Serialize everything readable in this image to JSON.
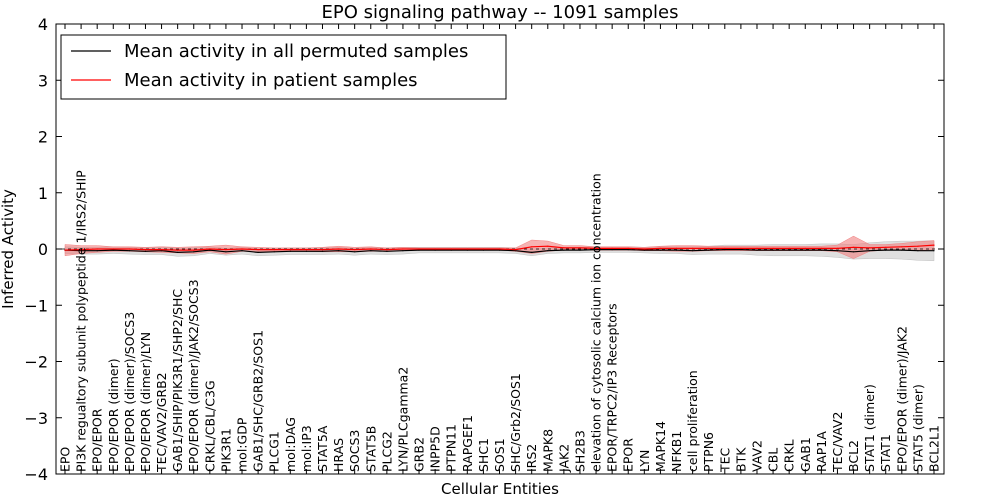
{
  "chart_data": {
    "type": "line",
    "title": "EPO signaling pathway -- 1091 samples",
    "xlabel": "Cellular Entities",
    "ylabel": "Inferred Activity",
    "ylim": [
      -4,
      4
    ],
    "yticks": [
      -4,
      -3,
      -2,
      -1,
      0,
      1,
      2,
      3,
      4
    ],
    "ytick_labels": [
      "−4",
      "−3",
      "−2",
      "−1",
      "0",
      "1",
      "2",
      "3",
      "4"
    ],
    "legend_position": "upper-left",
    "categories": [
      "EPO",
      "PI3K regualtory subunit polypeptide 1/IRS2/SHIP",
      "EPO/EPOR",
      "EPO/EPOR (dimer)",
      "EPO/EPOR (dimer)/SOCS3",
      "EPO/EPOR (dimer)/LYN",
      "TEC/VAV2/GRB2",
      "GAB1/SHIP/PIK3R1/SHP2/SHC",
      "EPO/EPOR (dimer)/JAK2/SOCS3",
      "CRKL/CBL/C3G",
      "PIK3R1",
      "mol:GDP",
      "GAB1/SHC/GRB2/SOS1",
      "PLCG1",
      "mol:DAG",
      "mol:IP3",
      "STAT5A",
      "HRAS",
      "SOCS3",
      "STAT5B",
      "PLCG2",
      "LYN/PLCgamma2",
      "GRB2",
      "INPP5D",
      "PTPN11",
      "RAPGEF1",
      "SHC1",
      "SOS1",
      "SHC/Grb2/SOS1",
      "IRS2",
      "MAPK8",
      "JAK2",
      "SH2B3",
      "elevation of cytosolic calcium ion concentration",
      "EPOR/TRPC2/IP3 Receptors",
      "EPOR",
      "LYN",
      "MAPK14",
      "NFKB1",
      "cell proliferation",
      "PTPN6",
      "TEC",
      "BTK",
      "VAV2",
      "CBL",
      "CRKL",
      "GAB1",
      "RAP1A",
      "TEC/VAV2",
      "BCL2",
      "STAT1 (dimer)",
      "STAT1",
      "EPO/EPOR (dimer)/JAK2",
      "STAT5 (dimer)",
      "BCL2L1"
    ],
    "series": [
      {
        "name": "Mean activity in all permuted samples",
        "color": "#000000",
        "band_color": "#c0c0c0",
        "values": [
          -0.02,
          -0.03,
          -0.03,
          -0.02,
          -0.03,
          -0.04,
          -0.03,
          -0.06,
          -0.05,
          -0.02,
          -0.05,
          -0.03,
          -0.06,
          -0.05,
          -0.04,
          -0.04,
          -0.04,
          -0.03,
          -0.05,
          -0.03,
          -0.04,
          -0.03,
          -0.02,
          -0.02,
          -0.02,
          -0.02,
          -0.02,
          -0.02,
          -0.03,
          -0.06,
          -0.03,
          -0.02,
          -0.02,
          -0.01,
          -0.01,
          -0.01,
          -0.02,
          -0.02,
          -0.02,
          -0.03,
          -0.02,
          -0.01,
          -0.01,
          -0.02,
          -0.02,
          -0.02,
          -0.02,
          -0.02,
          -0.03,
          -0.05,
          -0.03,
          -0.02,
          -0.02,
          -0.03,
          -0.03
        ],
        "band": [
          0.06,
          0.06,
          0.06,
          0.06,
          0.06,
          0.06,
          0.07,
          0.07,
          0.07,
          0.06,
          0.06,
          0.06,
          0.06,
          0.06,
          0.06,
          0.06,
          0.06,
          0.06,
          0.06,
          0.06,
          0.06,
          0.06,
          0.05,
          0.05,
          0.05,
          0.05,
          0.05,
          0.05,
          0.05,
          0.06,
          0.05,
          0.05,
          0.05,
          0.05,
          0.05,
          0.05,
          0.05,
          0.06,
          0.06,
          0.07,
          0.07,
          0.08,
          0.08,
          0.09,
          0.1,
          0.1,
          0.1,
          0.11,
          0.12,
          0.13,
          0.14,
          0.15,
          0.16,
          0.17,
          0.18
        ]
      },
      {
        "name": "Mean activity in patient samples",
        "color": "#ff0000",
        "band_color": "#f08080",
        "values": [
          -0.02,
          -0.01,
          0.0,
          0.0,
          0.0,
          -0.01,
          -0.01,
          -0.02,
          -0.02,
          0.0,
          -0.01,
          0.0,
          -0.01,
          -0.01,
          -0.01,
          -0.01,
          -0.01,
          0.0,
          -0.01,
          0.0,
          -0.01,
          0.0,
          0.0,
          0.0,
          0.0,
          0.0,
          0.0,
          0.0,
          -0.01,
          0.04,
          0.05,
          0.02,
          0.02,
          0.01,
          0.01,
          0.01,
          0.0,
          0.01,
          0.01,
          0.01,
          0.01,
          0.01,
          0.01,
          0.01,
          0.01,
          0.01,
          0.01,
          0.01,
          0.01,
          0.03,
          0.02,
          0.03,
          0.04,
          0.05,
          0.07
        ],
        "band": [
          0.1,
          0.07,
          0.06,
          0.04,
          0.04,
          0.04,
          0.05,
          0.05,
          0.06,
          0.05,
          0.08,
          0.04,
          0.04,
          0.03,
          0.03,
          0.03,
          0.04,
          0.05,
          0.04,
          0.04,
          0.03,
          0.03,
          0.02,
          0.02,
          0.02,
          0.02,
          0.02,
          0.02,
          0.03,
          0.12,
          0.09,
          0.04,
          0.04,
          0.03,
          0.03,
          0.03,
          0.03,
          0.04,
          0.05,
          0.05,
          0.04,
          0.04,
          0.04,
          0.04,
          0.04,
          0.04,
          0.04,
          0.04,
          0.06,
          0.2,
          0.06,
          0.05,
          0.06,
          0.08,
          0.08
        ]
      }
    ]
  }
}
